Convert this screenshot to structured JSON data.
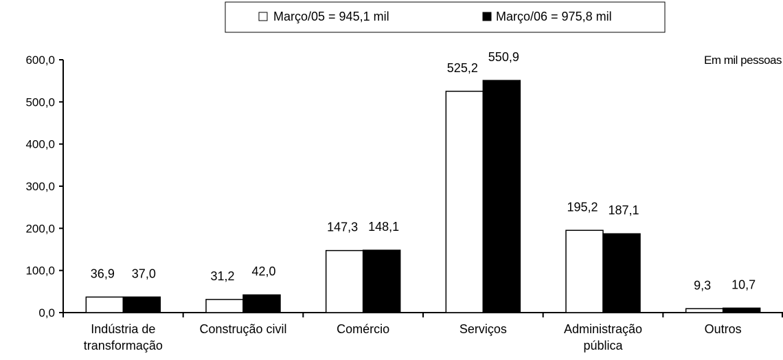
{
  "chart_data": {
    "type": "bar",
    "unit_label": "Em mil pessoas",
    "categories": [
      [
        "Indústria de",
        "transformação"
      ],
      [
        "Construção civil"
      ],
      [
        "Comércio"
      ],
      [
        "Serviços"
      ],
      [
        "Administração",
        "pública"
      ],
      [
        "Outros"
      ]
    ],
    "series": [
      {
        "name": "Março/05 = 945,1 mil",
        "color": "#ffffff",
        "values": [
          36.9,
          31.2,
          147.3,
          525.2,
          195.2,
          9.3
        ],
        "labels": [
          "36,9",
          "31,2",
          "147,3",
          "525,2",
          "195,2",
          "9,3"
        ]
      },
      {
        "name": "Março/06 = 975,8 mil",
        "color": "#000000",
        "values": [
          37.0,
          42.0,
          148.1,
          550.9,
          187.1,
          10.7
        ],
        "labels": [
          "37,0",
          "42,0",
          "148,1",
          "550,9",
          "187,1",
          "10,7"
        ]
      }
    ],
    "yticks": [
      0,
      100,
      200,
      300,
      400,
      500,
      600
    ],
    "ytick_labels": [
      "0,0",
      "100,0",
      "200,0",
      "300,0",
      "400,0",
      "500,0",
      "600,0"
    ],
    "ylim": [
      0,
      600
    ],
    "legend_position": "top-center",
    "grid": false
  }
}
